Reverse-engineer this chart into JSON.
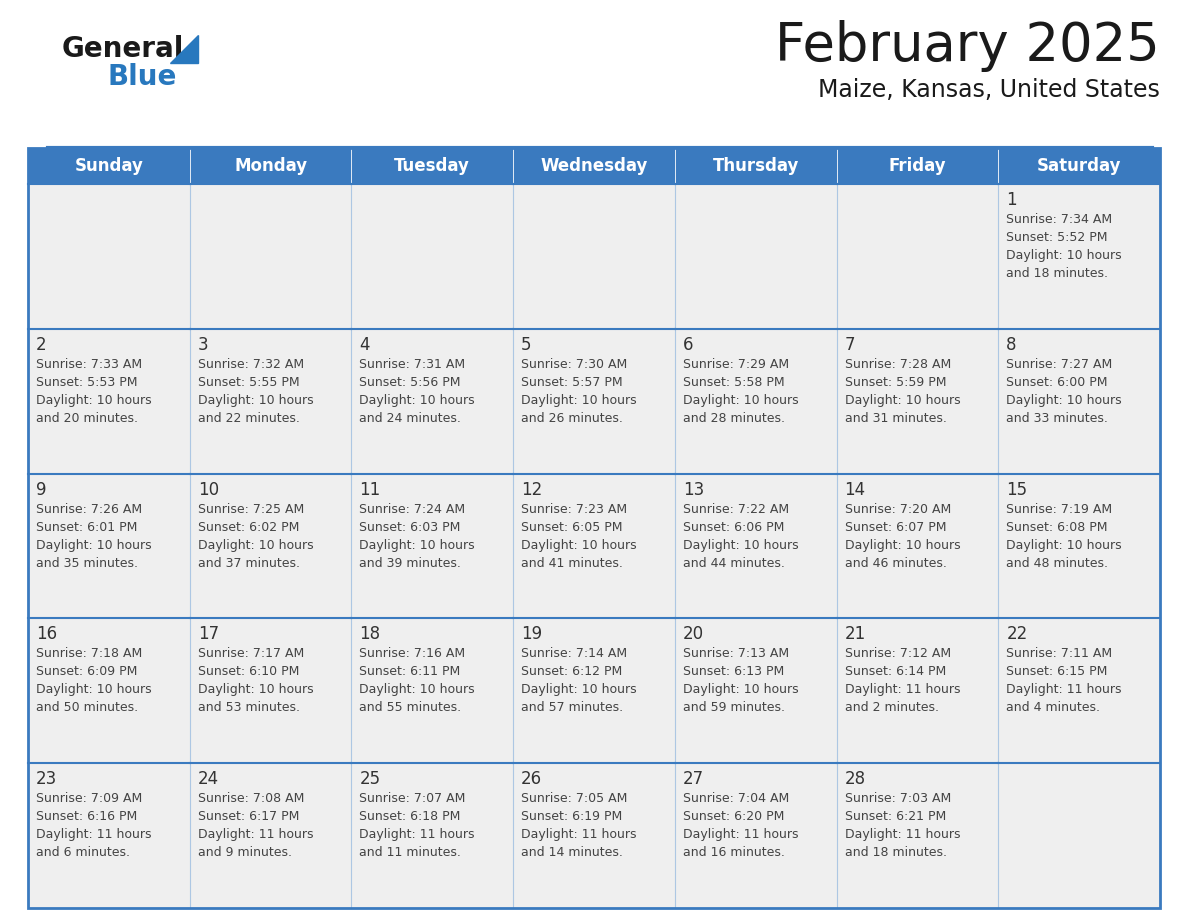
{
  "title": "February 2025",
  "subtitle": "Maize, Kansas, United States",
  "days_of_week": [
    "Sunday",
    "Monday",
    "Tuesday",
    "Wednesday",
    "Thursday",
    "Friday",
    "Saturday"
  ],
  "header_bg": "#3a7abf",
  "header_text_color": "#ffffff",
  "cell_bg": "#efefef",
  "border_color": "#3a7abf",
  "day_number_color": "#333333",
  "text_color": "#444444",
  "calendar_data": [
    [
      null,
      null,
      null,
      null,
      null,
      null,
      1
    ],
    [
      2,
      3,
      4,
      5,
      6,
      7,
      8
    ],
    [
      9,
      10,
      11,
      12,
      13,
      14,
      15
    ],
    [
      16,
      17,
      18,
      19,
      20,
      21,
      22
    ],
    [
      23,
      24,
      25,
      26,
      27,
      28,
      null
    ]
  ],
  "sunrise_data": {
    "1": "7:34 AM",
    "2": "7:33 AM",
    "3": "7:32 AM",
    "4": "7:31 AM",
    "5": "7:30 AM",
    "6": "7:29 AM",
    "7": "7:28 AM",
    "8": "7:27 AM",
    "9": "7:26 AM",
    "10": "7:25 AM",
    "11": "7:24 AM",
    "12": "7:23 AM",
    "13": "7:22 AM",
    "14": "7:20 AM",
    "15": "7:19 AM",
    "16": "7:18 AM",
    "17": "7:17 AM",
    "18": "7:16 AM",
    "19": "7:14 AM",
    "20": "7:13 AM",
    "21": "7:12 AM",
    "22": "7:11 AM",
    "23": "7:09 AM",
    "24": "7:08 AM",
    "25": "7:07 AM",
    "26": "7:05 AM",
    "27": "7:04 AM",
    "28": "7:03 AM"
  },
  "sunset_data": {
    "1": "5:52 PM",
    "2": "5:53 PM",
    "3": "5:55 PM",
    "4": "5:56 PM",
    "5": "5:57 PM",
    "6": "5:58 PM",
    "7": "5:59 PM",
    "8": "6:00 PM",
    "9": "6:01 PM",
    "10": "6:02 PM",
    "11": "6:03 PM",
    "12": "6:05 PM",
    "13": "6:06 PM",
    "14": "6:07 PM",
    "15": "6:08 PM",
    "16": "6:09 PM",
    "17": "6:10 PM",
    "18": "6:11 PM",
    "19": "6:12 PM",
    "20": "6:13 PM",
    "21": "6:14 PM",
    "22": "6:15 PM",
    "23": "6:16 PM",
    "24": "6:17 PM",
    "25": "6:18 PM",
    "26": "6:19 PM",
    "27": "6:20 PM",
    "28": "6:21 PM"
  },
  "daylight_data": {
    "1": "10 hours\nand 18 minutes.",
    "2": "10 hours\nand 20 minutes.",
    "3": "10 hours\nand 22 minutes.",
    "4": "10 hours\nand 24 minutes.",
    "5": "10 hours\nand 26 minutes.",
    "6": "10 hours\nand 28 minutes.",
    "7": "10 hours\nand 31 minutes.",
    "8": "10 hours\nand 33 minutes.",
    "9": "10 hours\nand 35 minutes.",
    "10": "10 hours\nand 37 minutes.",
    "11": "10 hours\nand 39 minutes.",
    "12": "10 hours\nand 41 minutes.",
    "13": "10 hours\nand 44 minutes.",
    "14": "10 hours\nand 46 minutes.",
    "15": "10 hours\nand 48 minutes.",
    "16": "10 hours\nand 50 minutes.",
    "17": "10 hours\nand 53 minutes.",
    "18": "10 hours\nand 55 minutes.",
    "19": "10 hours\nand 57 minutes.",
    "20": "10 hours\nand 59 minutes.",
    "21": "11 hours\nand 2 minutes.",
    "22": "11 hours\nand 4 minutes.",
    "23": "11 hours\nand 6 minutes.",
    "24": "11 hours\nand 9 minutes.",
    "25": "11 hours\nand 11 minutes.",
    "26": "11 hours\nand 14 minutes.",
    "27": "11 hours\nand 16 minutes.",
    "28": "11 hours\nand 18 minutes."
  },
  "logo_color_general": "#1a1a1a",
  "logo_color_blue": "#2878be",
  "logo_triangle_color": "#2878be"
}
